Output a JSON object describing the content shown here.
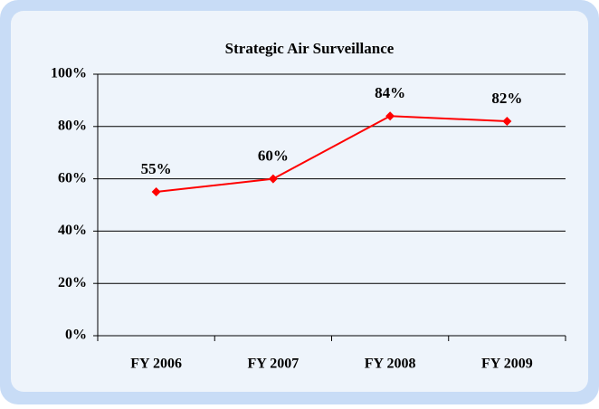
{
  "chart_data": {
    "type": "line",
    "title": "Strategic Air Surveillance",
    "categories": [
      "FY 2006",
      "FY 2007",
      "FY 2008",
      "FY 2009"
    ],
    "values": [
      55,
      60,
      84,
      82
    ],
    "value_labels": [
      "55%",
      "60%",
      "84%",
      "82%"
    ],
    "color": "#ff0000",
    "ylim": [
      0,
      100
    ],
    "yticks": [
      {
        "value": 0,
        "label": "0%"
      },
      {
        "value": 20,
        "label": "20%"
      },
      {
        "value": 40,
        "label": "40%"
      },
      {
        "value": 60,
        "label": "60%"
      },
      {
        "value": 80,
        "label": "80%"
      },
      {
        "value": 100,
        "label": "100%"
      }
    ],
    "grid": true
  }
}
